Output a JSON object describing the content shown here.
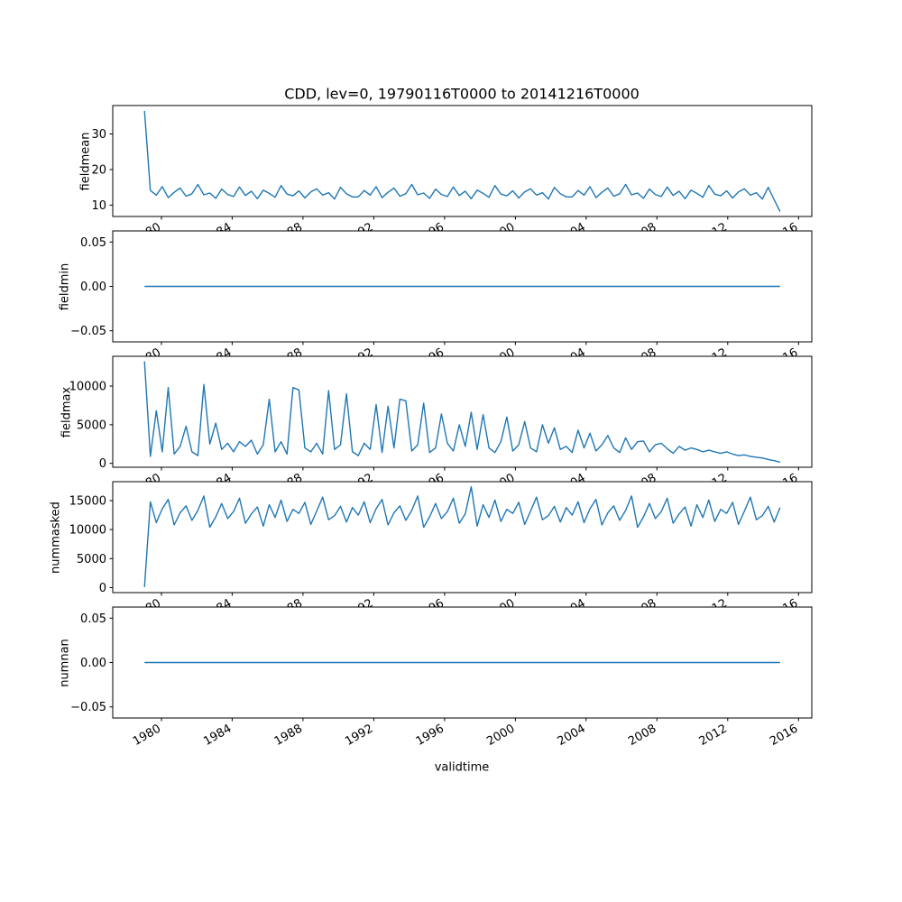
{
  "figure": {
    "title": "CDD, lev=0, 19790116T0000 to 20141216T0000",
    "xlabel": "validtime",
    "line_color": "#1f77b4",
    "frame_color": "#000000",
    "background": "#ffffff",
    "xlim": [
      1977.25,
      2016.75
    ],
    "xticks": [
      {
        "v": 1980,
        "label": "1980"
      },
      {
        "v": 1984,
        "label": "1984"
      },
      {
        "v": 1988,
        "label": "1988"
      },
      {
        "v": 1992,
        "label": "1992"
      },
      {
        "v": 1996,
        "label": "1996"
      },
      {
        "v": 2000,
        "label": "2000"
      },
      {
        "v": 2004,
        "label": "2004"
      },
      {
        "v": 2008,
        "label": "2008"
      },
      {
        "v": 2012,
        "label": "2012"
      },
      {
        "v": 2016,
        "label": "2016"
      }
    ],
    "time_range": "19790116T0000 to 20141216T0000",
    "variable": "CDD",
    "level": "lev=0"
  },
  "chart_data": [
    {
      "type": "line",
      "name": "fieldmean",
      "ylabel": "fieldmean",
      "ylim": [
        6.8,
        38.0
      ],
      "yticks": [
        {
          "v": 10,
          "label": "10"
        },
        {
          "v": 20,
          "label": "20"
        },
        {
          "v": 30,
          "label": "30"
        }
      ],
      "x_start": 1979.042,
      "x_end": 2014.958,
      "values": [
        36.5,
        14.1,
        12.8,
        15.2,
        12.1,
        13.6,
        14.8,
        12.5,
        13.2,
        15.8,
        12.9,
        13.4,
        11.9,
        14.5,
        13.0,
        12.4,
        15.1,
        12.7,
        13.9,
        11.8,
        14.2,
        13.3,
        12.2,
        15.5,
        13.1,
        12.6,
        14.0,
        12.0,
        13.7,
        14.6,
        12.8,
        13.5,
        11.7,
        15.0,
        13.2,
        12.3,
        12.3,
        14.1,
        12.8,
        15.2,
        12.1,
        13.6,
        14.8,
        12.5,
        13.2,
        15.8,
        12.9,
        13.4,
        11.9,
        14.5,
        13.0,
        12.4,
        15.1,
        12.7,
        13.9,
        11.8,
        14.2,
        13.3,
        12.2,
        15.5,
        13.1,
        12.6,
        14.0,
        12.0,
        13.7,
        14.6,
        12.8,
        13.5,
        11.7,
        15.0,
        13.2,
        12.3,
        12.3,
        14.1,
        12.8,
        15.2,
        12.1,
        13.6,
        14.8,
        12.5,
        13.2,
        15.8,
        12.9,
        13.4,
        11.9,
        14.5,
        13.0,
        12.4,
        15.1,
        12.7,
        13.9,
        11.8,
        14.2,
        13.3,
        12.2,
        15.5,
        13.1,
        12.6,
        14.0,
        12.0,
        13.7,
        14.6,
        12.8,
        13.5,
        11.7,
        15.0,
        11.5,
        8.2
      ]
    },
    {
      "type": "line",
      "name": "fieldmin",
      "ylabel": "fieldmin",
      "ylim": [
        -0.0625,
        0.0625
      ],
      "yticks": [
        {
          "v": -0.05,
          "label": "−0.05"
        },
        {
          "v": 0,
          "label": "0.00"
        },
        {
          "v": 0.05,
          "label": "0.05"
        }
      ],
      "x_start": 1979.042,
      "x_end": 2014.958,
      "values": [
        0,
        0
      ]
    },
    {
      "type": "line",
      "name": "fieldmax",
      "ylabel": "fieldmax",
      "ylim": [
        -500,
        13850
      ],
      "yticks": [
        {
          "v": 0,
          "label": "0"
        },
        {
          "v": 5000,
          "label": "5000"
        },
        {
          "v": 10000,
          "label": "10000"
        }
      ],
      "x_start": 1979.042,
      "x_end": 2014.958,
      "values": [
        13200,
        900,
        6800,
        1500,
        9800,
        1200,
        2200,
        4800,
        1500,
        1000,
        10200,
        2500,
        5200,
        1800,
        2600,
        1500,
        2800,
        2200,
        3000,
        1200,
        2400,
        8300,
        1500,
        2800,
        1200,
        9800,
        9500,
        2000,
        1500,
        2600,
        1200,
        9400,
        1800,
        2400,
        9000,
        1500,
        1000,
        2600,
        1800,
        7600,
        1400,
        7400,
        2000,
        8300,
        8100,
        1600,
        2400,
        7800,
        1400,
        2000,
        6400,
        2600,
        1600,
        5000,
        2200,
        6600,
        1800,
        6300,
        2000,
        1400,
        2800,
        6000,
        1600,
        2400,
        5400,
        2000,
        1500,
        5000,
        2600,
        4600,
        1800,
        2200,
        1400,
        4300,
        2000,
        3900,
        1600,
        2400,
        3600,
        2000,
        1400,
        3300,
        1800,
        2800,
        2900,
        1500,
        2400,
        2600,
        1900,
        1300,
        2200,
        1700,
        2000,
        1800,
        1500,
        1700,
        1500,
        1300,
        1500,
        1200,
        1000,
        1100,
        900,
        800,
        700,
        500,
        350,
        150
      ]
    },
    {
      "type": "line",
      "name": "nummasked",
      "ylabel": "nummasked",
      "ylim": [
        -870,
        18270
      ],
      "yticks": [
        {
          "v": 0,
          "label": "0"
        },
        {
          "v": 5000,
          "label": "5000"
        },
        {
          "v": 10000,
          "label": "10000"
        },
        {
          "v": 15000,
          "label": "15000"
        }
      ],
      "x_start": 1979.042,
      "x_end": 2014.958,
      "values": [
        100,
        14800,
        11200,
        13600,
        15200,
        10800,
        12900,
        14100,
        11600,
        13300,
        15800,
        10400,
        12200,
        14500,
        11900,
        13100,
        15400,
        11100,
        12700,
        13900,
        10600,
        14300,
        12100,
        15100,
        11400,
        13500,
        12800,
        14700,
        10900,
        13200,
        15600,
        11700,
        12400,
        14000,
        11300,
        13800,
        12500,
        14800,
        11200,
        13600,
        15200,
        10800,
        12900,
        14100,
        11600,
        13300,
        15800,
        10400,
        12200,
        14500,
        11900,
        13100,
        15400,
        11100,
        12700,
        17400,
        10600,
        14300,
        12100,
        15100,
        11400,
        13500,
        12800,
        14700,
        10900,
        13200,
        15600,
        11700,
        12400,
        14000,
        11300,
        13800,
        12500,
        14800,
        11200,
        13600,
        15200,
        10800,
        12900,
        14100,
        11600,
        13300,
        15800,
        10400,
        12200,
        14500,
        11900,
        13100,
        15400,
        11100,
        12700,
        13900,
        10600,
        14300,
        12100,
        15100,
        11400,
        13500,
        12800,
        14700,
        10900,
        13200,
        15600,
        11700,
        12400,
        14000,
        11300,
        13800
      ]
    },
    {
      "type": "line",
      "name": "numnan",
      "ylabel": "numnan",
      "ylim": [
        -0.0625,
        0.0625
      ],
      "yticks": [
        {
          "v": -0.05,
          "label": "−0.05"
        },
        {
          "v": 0,
          "label": "0.00"
        },
        {
          "v": 0.05,
          "label": "0.05"
        }
      ],
      "x_start": 1979.042,
      "x_end": 2014.958,
      "values": [
        0,
        0
      ]
    }
  ]
}
